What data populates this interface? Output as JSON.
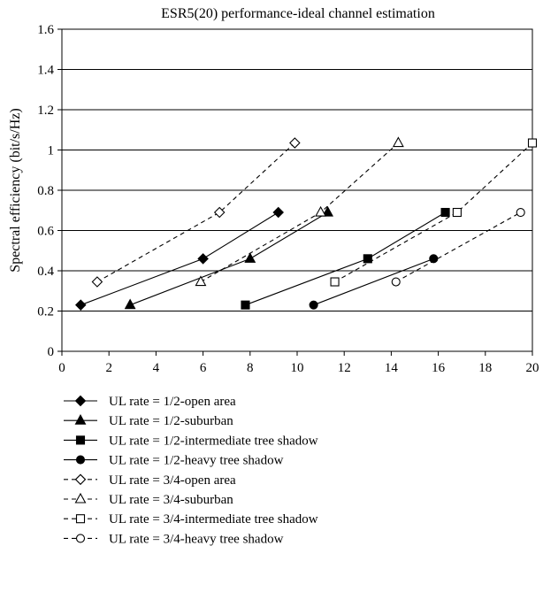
{
  "chart_data": {
    "type": "line",
    "title": "ESR5(20) performance-ideal channel estimation",
    "xlabel": "",
    "ylabel": "Spectral efficiency (bit/s/Hz)",
    "xlim": [
      0,
      20
    ],
    "ylim": [
      0,
      1.6
    ],
    "xticks": [
      0,
      2,
      4,
      6,
      8,
      10,
      12,
      14,
      16,
      18,
      20
    ],
    "xtick_labels": [
      "0",
      "2",
      "4",
      "6",
      "8",
      "10",
      "12",
      "14",
      "16",
      "18",
      "20"
    ],
    "yticks": [
      0,
      0.2,
      0.4,
      0.6,
      0.8,
      1,
      1.2,
      1.4,
      1.6
    ],
    "ytick_labels": [
      "0",
      "0.2",
      "0.4",
      "0.6",
      "0.8",
      "1",
      "1.2",
      "1.4",
      "1.6"
    ],
    "grid": "horizontal",
    "legend_position": "bottom",
    "series": [
      {
        "name": "UL rate = 1/2-open area",
        "marker": "diamond",
        "filled": true,
        "dashed": false,
        "points": [
          [
            0.8,
            0.23
          ],
          [
            6.0,
            0.46
          ],
          [
            9.2,
            0.69
          ]
        ]
      },
      {
        "name": "UL rate = 1/2-suburban",
        "marker": "triangle",
        "filled": true,
        "dashed": false,
        "points": [
          [
            2.9,
            0.23
          ],
          [
            8.0,
            0.46
          ],
          [
            11.3,
            0.69
          ]
        ]
      },
      {
        "name": "UL rate = 1/2-intermediate tree shadow",
        "marker": "square",
        "filled": true,
        "dashed": false,
        "points": [
          [
            7.8,
            0.23
          ],
          [
            13.0,
            0.46
          ],
          [
            16.3,
            0.69
          ]
        ]
      },
      {
        "name": "UL rate = 1/2-heavy tree shadow",
        "marker": "circle",
        "filled": true,
        "dashed": false,
        "points": [
          [
            10.7,
            0.23
          ],
          [
            15.8,
            0.46
          ]
        ]
      },
      {
        "name": "UL rate = 3/4-open area",
        "marker": "diamond",
        "filled": false,
        "dashed": true,
        "points": [
          [
            1.5,
            0.345
          ],
          [
            6.7,
            0.69
          ],
          [
            9.9,
            1.035
          ]
        ]
      },
      {
        "name": "UL rate = 3/4-suburban",
        "marker": "triangle",
        "filled": false,
        "dashed": true,
        "points": [
          [
            5.9,
            0.345
          ],
          [
            11.0,
            0.69
          ],
          [
            14.3,
            1.035
          ]
        ]
      },
      {
        "name": "UL rate = 3/4-intermediate tree shadow",
        "marker": "square",
        "filled": false,
        "dashed": true,
        "points": [
          [
            11.6,
            0.345
          ],
          [
            16.8,
            0.69
          ],
          [
            20.0,
            1.035
          ]
        ]
      },
      {
        "name": "UL rate = 3/4-heavy tree shadow",
        "marker": "circle",
        "filled": false,
        "dashed": true,
        "points": [
          [
            14.2,
            0.345
          ],
          [
            19.5,
            0.69
          ]
        ]
      }
    ]
  }
}
